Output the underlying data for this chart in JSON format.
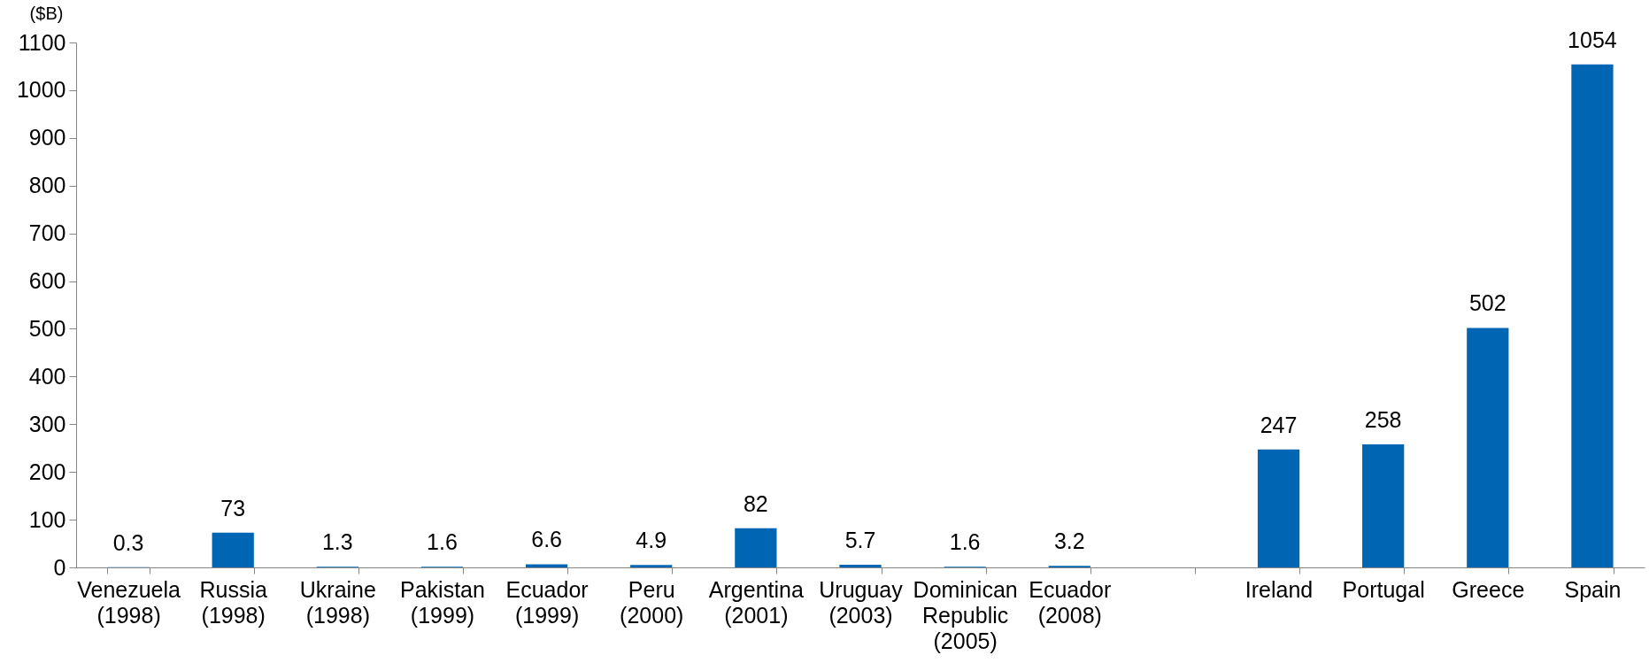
{
  "chart_data": {
    "type": "bar",
    "ylabel": "($B)",
    "categories": [
      "Venezuela\n(1998)",
      "Russia\n(1998)",
      "Ukraine\n(1998)",
      "Pakistan\n(1999)",
      "Ecuador\n(1999)",
      "Peru\n(2000)",
      "Argentina\n(2001)",
      "Uruguay\n(2003)",
      "Dominican\nRepublic\n(2005)",
      "Ecuador\n(2008)",
      null,
      "Ireland",
      "Portugal",
      "Greece",
      "Spain"
    ],
    "values": [
      0.3,
      73,
      1.3,
      1.6,
      6.6,
      4.9,
      82,
      5.7,
      1.6,
      3.2,
      null,
      247,
      258,
      502,
      1054
    ],
    "color": "#0066b3",
    "ylim": [
      0,
      1100
    ],
    "yticks": [
      0,
      100,
      200,
      300,
      400,
      500,
      600,
      700,
      800,
      900,
      1000,
      1100
    ],
    "grid": false,
    "data_labels": true
  }
}
